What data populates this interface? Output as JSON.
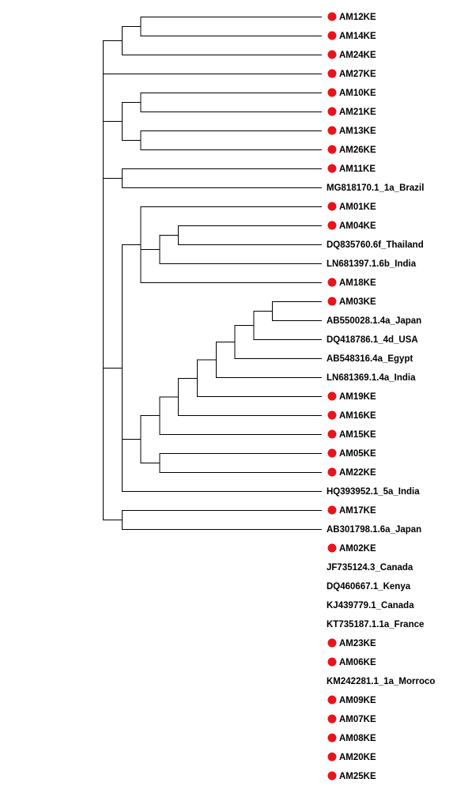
{
  "tree": {
    "marker_color": "#e8141a",
    "line_color": "#000000",
    "newick": "(((AM12KE,AM14KE),AM24KE),AM27KE,((AM10KE,AM21KE),(AM13KE,AM26KE)),(AM11KE,MG818170.1_1a_Brazil),((AM01KE,((AM04KE,DQ835760.6f_Thailand),LN681397.1.6b_India),AM18KE),((((((((AM03KE,AB550028.1.4a_Japan),DQ418786.1_4d_USA),AB548316.4a_Egypt),LN681369.1.4a_India),AM19KE),AM16KE),AM15KE),(AM05KE,AM22KE)),HQ393952.1_5a_India),(AM17KE,AB301798.1.6a_Japan))),(((((AM02KE,JF735124.3_Canada),DQ460667.1_Kenya),KJ439779.1_Canada),KT735187.1.1a_France),AM23KE),((AM06KE,KM242281.1_1a_Morroco),AM09KE,(AM07KE,AM08KE))),(AM20KE,AM25KE))",
    "leaves": [
      {
        "label": "AM12KE",
        "marked": true
      },
      {
        "label": "AM14KE",
        "marked": true
      },
      {
        "label": "AM24KE",
        "marked": true
      },
      {
        "label": "AM27KE",
        "marked": true
      },
      {
        "label": "AM10KE",
        "marked": true
      },
      {
        "label": "AM21KE",
        "marked": true
      },
      {
        "label": "AM13KE",
        "marked": true
      },
      {
        "label": "AM26KE",
        "marked": true
      },
      {
        "label": "AM11KE",
        "marked": true
      },
      {
        "label": "MG818170.1_1a_Brazil",
        "marked": false
      },
      {
        "label": "AM01KE",
        "marked": true
      },
      {
        "label": "AM04KE",
        "marked": true
      },
      {
        "label": "DQ835760.6f_Thailand",
        "marked": false
      },
      {
        "label": "LN681397.1.6b_India",
        "marked": false
      },
      {
        "label": "AM18KE",
        "marked": true
      },
      {
        "label": "AM03KE",
        "marked": true
      },
      {
        "label": "AB550028.1.4a_Japan",
        "marked": false
      },
      {
        "label": "DQ418786.1_4d_USA",
        "marked": false
      },
      {
        "label": "AB548316.4a_Egypt",
        "marked": false
      },
      {
        "label": "LN681369.1.4a_India",
        "marked": false
      },
      {
        "label": "AM19KE",
        "marked": true
      },
      {
        "label": "AM16KE",
        "marked": true
      },
      {
        "label": "AM15KE",
        "marked": true
      },
      {
        "label": "AM05KE",
        "marked": true
      },
      {
        "label": "AM22KE",
        "marked": true
      },
      {
        "label": "HQ393952.1_5a_India",
        "marked": false
      },
      {
        "label": "AM17KE",
        "marked": true
      },
      {
        "label": "AB301798.1.6a_Japan",
        "marked": false
      },
      {
        "label": "AM02KE",
        "marked": true
      },
      {
        "label": "JF735124.3_Canada",
        "marked": false
      },
      {
        "label": "DQ460667.1_Kenya",
        "marked": false
      },
      {
        "label": "KJ439779.1_Canada",
        "marked": false
      },
      {
        "label": "KT735187.1.1a_France",
        "marked": false
      },
      {
        "label": "AM23KE",
        "marked": true
      },
      {
        "label": "AM06KE",
        "marked": true
      },
      {
        "label": "KM242281.1_1a_Morroco",
        "marked": false
      },
      {
        "label": "AM09KE",
        "marked": true
      },
      {
        "label": "AM07KE",
        "marked": true
      },
      {
        "label": "AM08KE",
        "marked": true
      },
      {
        "label": "AM20KE",
        "marked": true
      },
      {
        "label": "AM25KE",
        "marked": true
      }
    ]
  }
}
